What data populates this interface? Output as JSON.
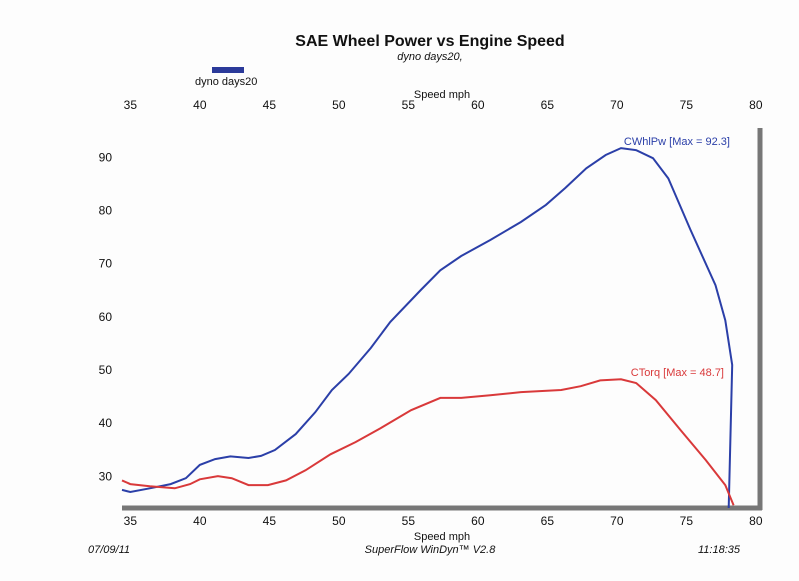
{
  "chart_data": {
    "type": "line",
    "title": "SAE Wheel Power vs Engine Speed",
    "subtitle": "dyno days20,",
    "legend": {
      "label": "dyno days20",
      "color": "#2b3a9a"
    },
    "xlabel_top": "Speed   mph",
    "xlabel": "Speed   mph",
    "xlim": [
      34.4,
      80.3
    ],
    "ylim": [
      24.2,
      96.8
    ],
    "xticks": [
      35,
      40,
      45,
      50,
      55,
      60,
      65,
      70,
      75,
      80
    ],
    "yticks": [
      30,
      40,
      50,
      60,
      70,
      80,
      90
    ],
    "series": [
      {
        "label": "CWhlPw [Max = 92.3]",
        "color": "#2b3fa8",
        "x": [
          34.4,
          35,
          36.4,
          37.9,
          39.0,
          40.0,
          41.1,
          42.2,
          43.5,
          44.4,
          45.4,
          46.9,
          48.3,
          49.5,
          50.7,
          52.3,
          53.7,
          55.9,
          57.3,
          58.8,
          60.9,
          63.1,
          64.9,
          66.3,
          67.8,
          69.2,
          70.3,
          71.4,
          72.6,
          73.7,
          75.3,
          77.1,
          77.8,
          78.3,
          78.05
        ],
        "values": [
          27.6,
          27.2,
          27.9,
          28.7,
          29.8,
          32.3,
          33.4,
          33.9,
          33.6,
          34.0,
          35.1,
          38.1,
          42.2,
          46.4,
          49.4,
          54.3,
          59.2,
          65.2,
          68.9,
          71.6,
          74.6,
          78.0,
          81.2,
          84.4,
          88.1,
          90.6,
          91.9,
          91.5,
          90.0,
          86.2,
          76.5,
          66.1,
          59.5,
          51.1,
          24.2
        ]
      },
      {
        "label": "CTorq  [Max = 48.7]",
        "color": "#d9393a",
        "x": [
          34.4,
          35,
          36.4,
          38.2,
          39.3,
          40.0,
          41.3,
          42.3,
          43.5,
          44.9,
          46.2,
          47.6,
          49.4,
          51.2,
          53.0,
          55.2,
          57.3,
          58.8,
          60.9,
          63.1,
          66.0,
          67.4,
          68.8,
          70.3,
          71.4,
          72.8,
          74.6,
          76.4,
          77.8,
          78.4
        ],
        "values": [
          29.4,
          28.7,
          28.3,
          27.9,
          28.7,
          29.6,
          30.2,
          29.8,
          28.5,
          28.5,
          29.4,
          31.3,
          34.3,
          36.6,
          39.2,
          42.6,
          44.9,
          44.9,
          45.4,
          46.0,
          46.4,
          47.1,
          48.2,
          48.4,
          47.7,
          44.5,
          38.8,
          33.2,
          28.5,
          24.7
        ]
      }
    ],
    "footer": {
      "date": "07/09/11",
      "software": "SuperFlow WinDyn™ V2.8",
      "time": "11:18:35"
    }
  }
}
